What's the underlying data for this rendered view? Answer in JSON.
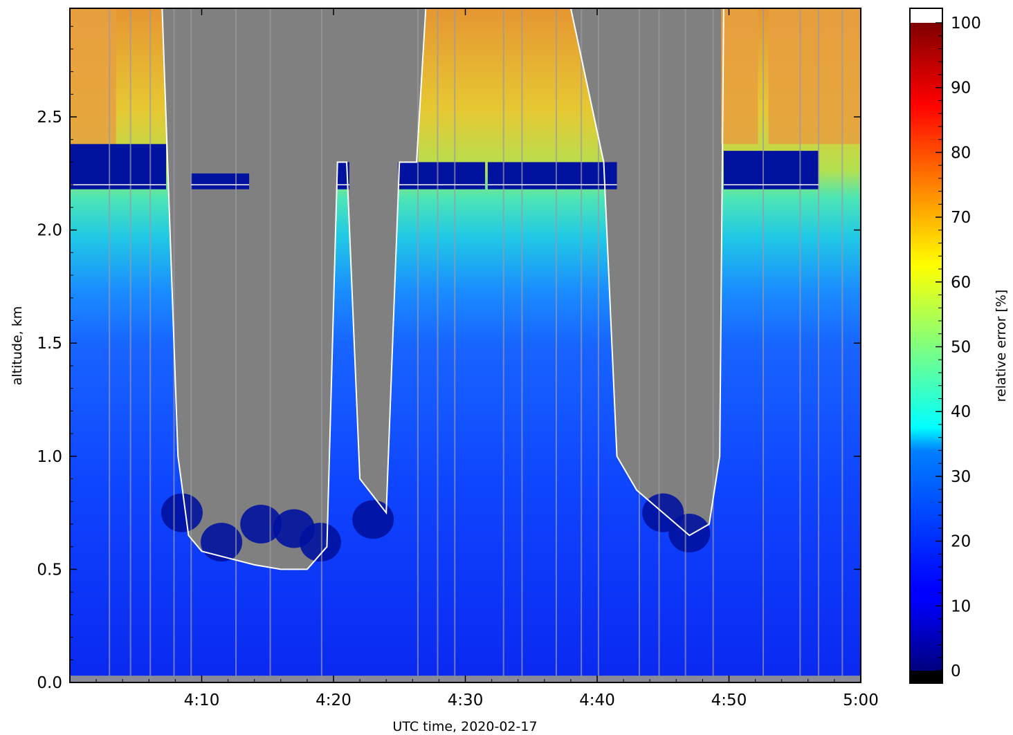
{
  "chart_data": {
    "type": "heatmap",
    "title": "",
    "xlabel": "UTC time,  2020-02-17",
    "ylabel": "altitude, km",
    "x_range": [
      "4:00",
      "5:00"
    ],
    "xlim_minutes": [
      0,
      60
    ],
    "ylim": [
      0,
      2.98
    ],
    "x_ticks": [
      "4:10",
      "4:20",
      "4:30",
      "4:40",
      "4:50",
      "5:00"
    ],
    "x_tick_minutes": [
      10,
      20,
      30,
      40,
      50,
      60
    ],
    "y_ticks": [
      "0.0",
      "0.5",
      "1.0",
      "1.5",
      "2.0",
      "2.5"
    ],
    "y_tick_values": [
      0,
      0.5,
      1.0,
      1.5,
      2.0,
      2.5
    ],
    "colorbar": {
      "label": "relative error [%]",
      "range": [
        0,
        100
      ],
      "ticks": [
        "0",
        "10",
        "20",
        "30",
        "40",
        "50",
        "60",
        "70",
        "80",
        "90",
        "100"
      ],
      "tick_values": [
        0,
        10,
        20,
        30,
        40,
        50,
        60,
        70,
        80,
        90,
        100
      ],
      "colormap": "jet",
      "under_color": "#000000",
      "over_color": "#ffffff"
    },
    "missing_color": "#808080",
    "contour_color": "#ffffff",
    "cloud_base_profile": {
      "description": "lowest altitude (km) of the grey no-signal region",
      "minutes": [
        0,
        4,
        7,
        8.2,
        9,
        10,
        12,
        14,
        16,
        18,
        19.5,
        20.3,
        21,
        22,
        24,
        25,
        26.3,
        27,
        32,
        34,
        36,
        38,
        40.5,
        41.5,
        43,
        45,
        47,
        48.5,
        49.3,
        49.6,
        51,
        55,
        60
      ],
      "base_km": [
        3.0,
        3.0,
        3.0,
        1.0,
        0.65,
        0.58,
        0.55,
        0.52,
        0.5,
        0.5,
        0.6,
        2.3,
        2.3,
        0.9,
        0.75,
        2.3,
        2.3,
        3.0,
        3.0,
        3.0,
        3.0,
        3.0,
        2.3,
        1.0,
        0.85,
        0.75,
        0.65,
        0.7,
        1.0,
        3.0,
        3.0,
        3.0,
        3.0
      ]
    },
    "low_error_layer": {
      "description": "dark blue (low relative error) layer top altitude (km)",
      "minutes": [
        0,
        5,
        10,
        15,
        20,
        25,
        30,
        35,
        40,
        41.5,
        50,
        55
      ],
      "top_km": [
        2.38,
        2.37,
        2.25,
        2.25,
        2.3,
        2.3,
        2.32,
        2.3,
        2.33,
        2.35,
        2.35,
        2.3
      ]
    },
    "error_profile_clear": {
      "altitude_km": [
        0,
        0.5,
        1.0,
        1.5,
        1.8,
        2.0,
        2.2,
        2.4,
        2.98
      ],
      "relative_error_pct": [
        10,
        12,
        16,
        22,
        35,
        45,
        55,
        70,
        80
      ]
    }
  }
}
